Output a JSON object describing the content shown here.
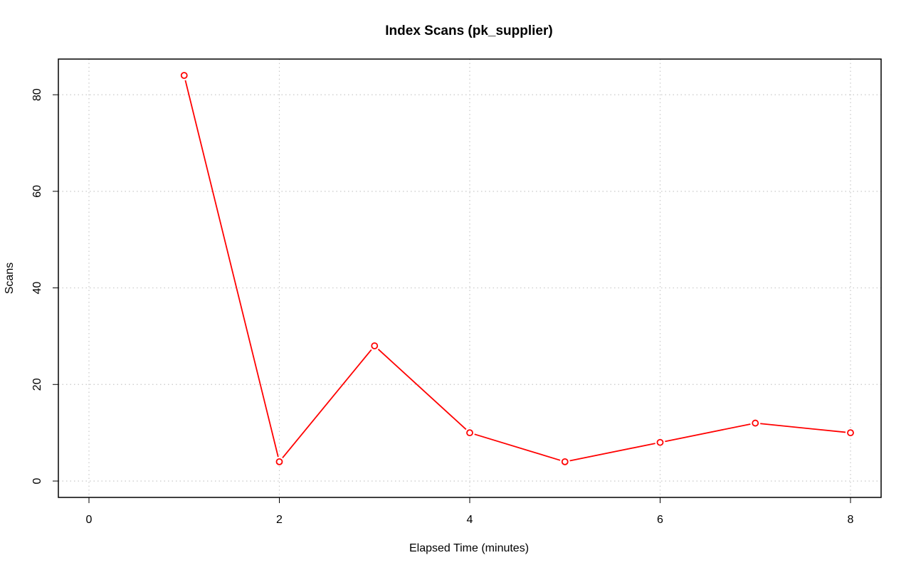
{
  "chart_data": {
    "type": "line",
    "title": "Index Scans (pk_supplier)",
    "xlabel": "Elapsed Time (minutes)",
    "ylabel": "Scans",
    "xlim": [
      0,
      8
    ],
    "ylim": [
      0,
      84
    ],
    "x_ticks": [
      0,
      2,
      4,
      6,
      8
    ],
    "y_ticks": [
      0,
      20,
      40,
      60,
      80
    ],
    "grid": true,
    "series": [
      {
        "x": [
          1,
          2,
          3,
          4,
          5,
          6,
          7,
          8
        ],
        "values": [
          84,
          4,
          28,
          10,
          4,
          8,
          12,
          10
        ],
        "color": "#ff0000",
        "marker": "open-circle"
      }
    ]
  }
}
